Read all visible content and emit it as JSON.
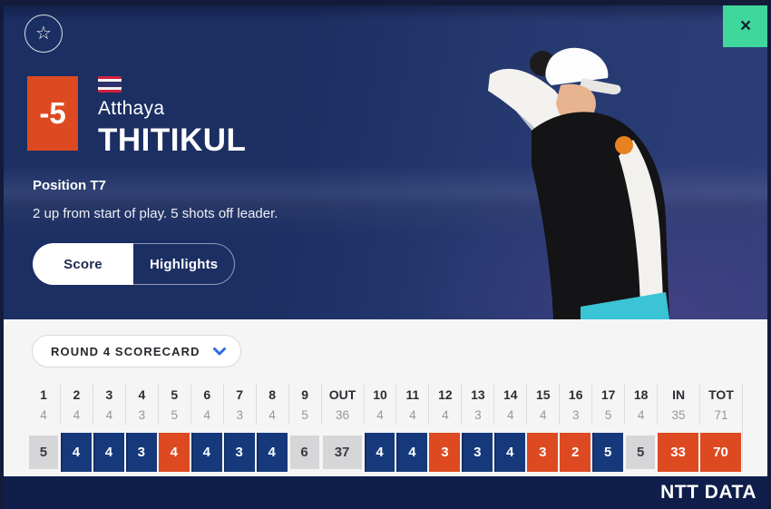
{
  "modal": {
    "close_icon": "×",
    "favorite_icon": "☆"
  },
  "player": {
    "score_to_par": "-5",
    "first_name": "Atthaya",
    "last_name": "THITIKUL",
    "flag": "thailand-flag",
    "position_label": "Position T7",
    "status_text": "2 up from start of play. 5 shots off leader."
  },
  "tabs": {
    "score": "Score",
    "highlights": "Highlights"
  },
  "scorecard": {
    "selector_label": "ROUND 4 SCORECARD",
    "selector_icon": "chevron-down",
    "columns": [
      {
        "label": "1",
        "par": "4",
        "score": "5",
        "result": "over",
        "wide": false
      },
      {
        "label": "2",
        "par": "4",
        "score": "4",
        "result": "par",
        "wide": false
      },
      {
        "label": "3",
        "par": "4",
        "score": "4",
        "result": "par",
        "wide": false
      },
      {
        "label": "4",
        "par": "3",
        "score": "3",
        "result": "par",
        "wide": false
      },
      {
        "label": "5",
        "par": "5",
        "score": "4",
        "result": "under",
        "wide": false
      },
      {
        "label": "6",
        "par": "4",
        "score": "4",
        "result": "par",
        "wide": false
      },
      {
        "label": "7",
        "par": "3",
        "score": "3",
        "result": "par",
        "wide": false
      },
      {
        "label": "8",
        "par": "4",
        "score": "4",
        "result": "par",
        "wide": false
      },
      {
        "label": "9",
        "par": "5",
        "score": "6",
        "result": "over",
        "wide": false
      },
      {
        "label": "OUT",
        "par": "36",
        "score": "37",
        "result": "over",
        "wide": true
      },
      {
        "label": "10",
        "par": "4",
        "score": "4",
        "result": "par",
        "wide": false
      },
      {
        "label": "11",
        "par": "4",
        "score": "4",
        "result": "par",
        "wide": false
      },
      {
        "label": "12",
        "par": "4",
        "score": "3",
        "result": "under",
        "wide": false
      },
      {
        "label": "13",
        "par": "3",
        "score": "3",
        "result": "par",
        "wide": false
      },
      {
        "label": "14",
        "par": "4",
        "score": "4",
        "result": "par",
        "wide": false
      },
      {
        "label": "15",
        "par": "4",
        "score": "3",
        "result": "under",
        "wide": false
      },
      {
        "label": "16",
        "par": "3",
        "score": "2",
        "result": "under",
        "wide": false
      },
      {
        "label": "17",
        "par": "5",
        "score": "5",
        "result": "par",
        "wide": false
      },
      {
        "label": "18",
        "par": "4",
        "score": "5",
        "result": "over",
        "wide": false
      },
      {
        "label": "IN",
        "par": "35",
        "score": "33",
        "result": "under",
        "wide": true
      },
      {
        "label": "TOT",
        "par": "71",
        "score": "70",
        "result": "under",
        "wide": true
      }
    ]
  },
  "footer": {
    "brand": "NTT DATA"
  },
  "colors": {
    "birdie_orange": "#DD4A21",
    "par_navy": "#16397B",
    "over_gray": "#D6D5D7",
    "hero_navy": "#1C2F63",
    "footer_navy": "#0F1E4A",
    "close_green": "#3FD79C",
    "chevron_blue": "#2D6DE4"
  }
}
